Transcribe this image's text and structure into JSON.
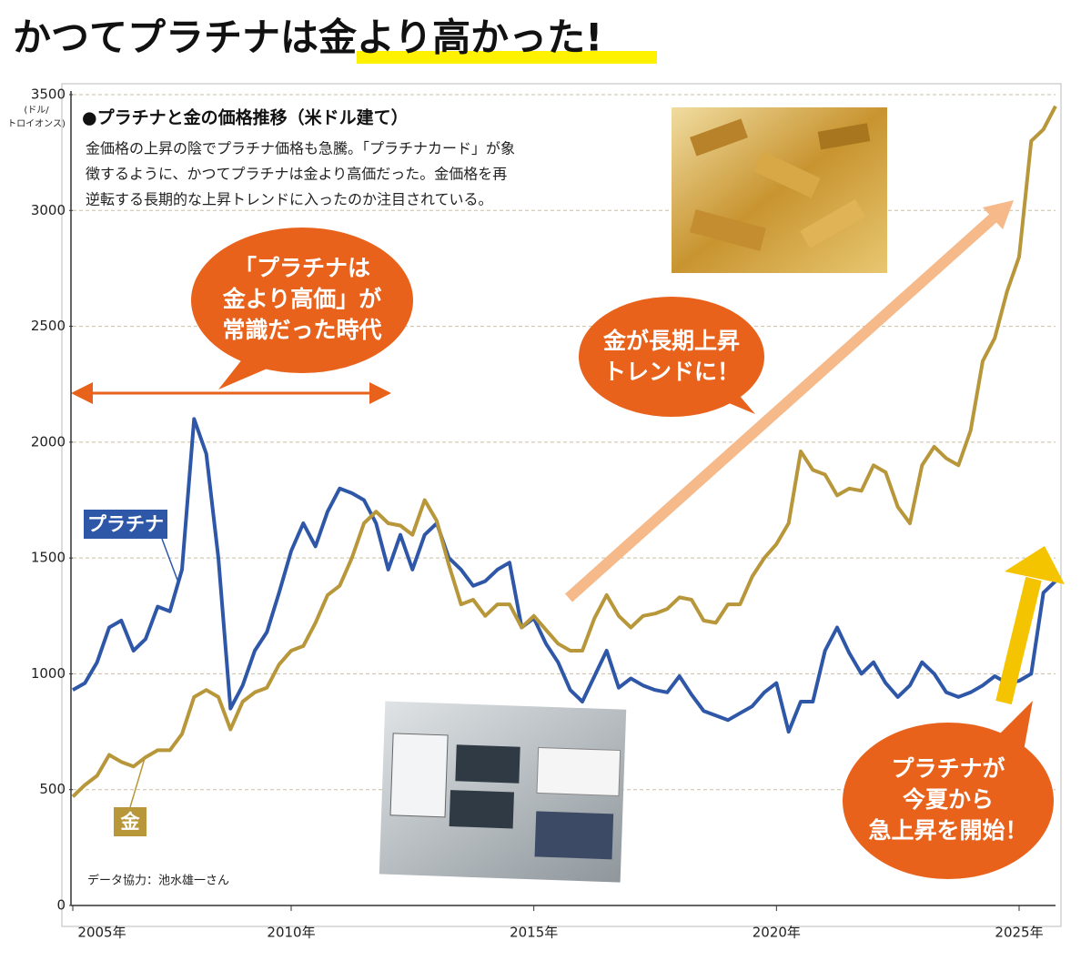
{
  "chart_data": {
    "type": "line",
    "title": "かつてプラチナは金より高かった!",
    "subtitle": "●プラチナと金の価格推移（米ドル建て）",
    "description": [
      "金価格の上昇の陰でプラチナ価格も急騰。「プラチナカード」が象",
      "徴するように、かつてプラチナは金より高価だった。金価格を再",
      "逆転する長期的な上昇トレンドに入ったのか注目されている。"
    ],
    "ylabel": [
      "(ドル/",
      "トロイオンス)"
    ],
    "annotations": {
      "era": [
        "「プラチナは",
        "金より高価」が",
        "常識だった時代"
      ],
      "gold_trend": [
        "金が長期上昇",
        "トレンドに！"
      ],
      "platinum_surge": [
        "プラチナが",
        "今夏から",
        "急上昇を開始！"
      ]
    },
    "credit": "データ協力：池水雄一さん",
    "xlim": [
      2005.5,
      2025.75
    ],
    "xticks": [
      {
        "value": 2005.5,
        "label": "2005年"
      },
      {
        "value": 2010,
        "label": "2010年"
      },
      {
        "value": 2015,
        "label": "2015年"
      },
      {
        "value": 2020,
        "label": "2020年"
      },
      {
        "value": 2025,
        "label": "2025年"
      }
    ],
    "ylim": [
      0,
      3500
    ],
    "yticks": [
      0,
      500,
      1000,
      1500,
      2000,
      2500,
      3000,
      3500
    ],
    "grid": true,
    "x": [
      2005.5,
      2005.75,
      2006,
      2006.25,
      2006.5,
      2006.75,
      2007,
      2007.25,
      2007.5,
      2007.75,
      2008,
      2008.25,
      2008.5,
      2008.75,
      2009,
      2009.25,
      2009.5,
      2009.75,
      2010,
      2010.25,
      2010.5,
      2010.75,
      2011,
      2011.25,
      2011.5,
      2011.75,
      2012,
      2012.25,
      2012.5,
      2012.75,
      2013,
      2013.25,
      2013.5,
      2013.75,
      2014,
      2014.25,
      2014.5,
      2014.75,
      2015,
      2015.25,
      2015.5,
      2015.75,
      2016,
      2016.25,
      2016.5,
      2016.75,
      2017,
      2017.25,
      2017.5,
      2017.75,
      2018,
      2018.25,
      2018.5,
      2018.75,
      2019,
      2019.25,
      2019.5,
      2019.75,
      2020,
      2020.25,
      2020.5,
      2020.75,
      2021,
      2021.25,
      2021.5,
      2021.75,
      2022,
      2022.25,
      2022.5,
      2022.75,
      2023,
      2023.25,
      2023.5,
      2023.75,
      2024,
      2024.25,
      2024.5,
      2024.75,
      2025,
      2025.25,
      2025.5,
      2025.75
    ],
    "series": [
      {
        "name": "プラチナ",
        "color": "#2f57a8",
        "values": [
          930,
          960,
          1050,
          1200,
          1230,
          1100,
          1150,
          1290,
          1270,
          1450,
          2100,
          1950,
          1500,
          850,
          950,
          1100,
          1180,
          1350,
          1530,
          1650,
          1550,
          1700,
          1800,
          1780,
          1750,
          1650,
          1450,
          1600,
          1450,
          1600,
          1650,
          1500,
          1450,
          1380,
          1400,
          1450,
          1480,
          1200,
          1240,
          1130,
          1050,
          930,
          880,
          990,
          1100,
          940,
          980,
          950,
          930,
          920,
          990,
          910,
          840,
          820,
          800,
          830,
          860,
          920,
          960,
          750,
          880,
          880,
          1100,
          1200,
          1090,
          1000,
          1050,
          960,
          900,
          950,
          1050,
          1000,
          920,
          900,
          920,
          950,
          990,
          960,
          970,
          1000,
          1350,
          1400
        ]
      },
      {
        "name": "金",
        "color": "#b8963a",
        "values": [
          470,
          520,
          560,
          650,
          620,
          600,
          640,
          670,
          670,
          740,
          900,
          930,
          900,
          760,
          880,
          920,
          940,
          1040,
          1100,
          1120,
          1220,
          1340,
          1380,
          1500,
          1650,
          1700,
          1650,
          1640,
          1600,
          1750,
          1660,
          1470,
          1300,
          1320,
          1250,
          1300,
          1300,
          1200,
          1250,
          1190,
          1130,
          1100,
          1100,
          1240,
          1340,
          1250,
          1200,
          1250,
          1260,
          1280,
          1330,
          1320,
          1230,
          1220,
          1300,
          1300,
          1420,
          1500,
          1560,
          1650,
          1960,
          1880,
          1860,
          1770,
          1800,
          1790,
          1900,
          1870,
          1720,
          1650,
          1900,
          1980,
          1930,
          1900,
          2050,
          2350,
          2450,
          2650,
          2800,
          3300,
          3350,
          3450
        ]
      }
    ]
  }
}
